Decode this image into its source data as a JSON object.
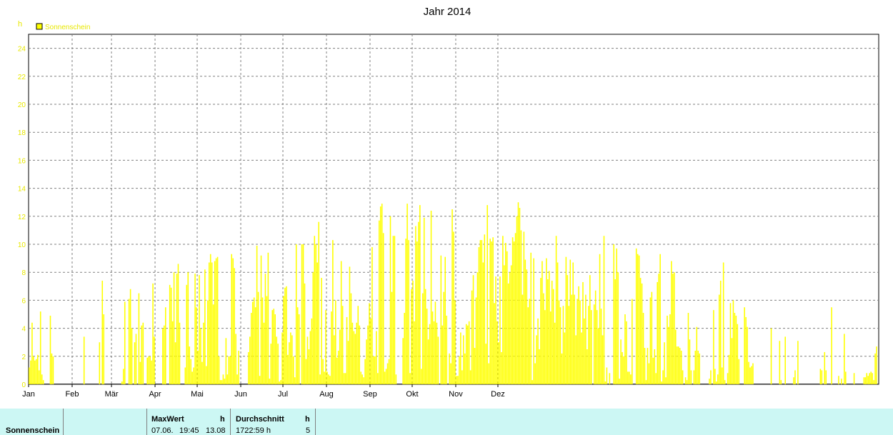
{
  "chart_data": {
    "type": "bar",
    "title": "Jahr 2014",
    "ylabel": "h",
    "ylim": [
      0,
      25
    ],
    "yticks": [
      "0",
      "2",
      "4",
      "6",
      "8",
      "10",
      "12",
      "14",
      "16",
      "18",
      "20",
      "22",
      "24"
    ],
    "months": [
      "Jan",
      "Feb",
      "Mär",
      "Apr",
      "Mai",
      "Jun",
      "Jul",
      "Aug",
      "Sep",
      "Okt",
      "Nov",
      "Dez"
    ],
    "grid": true,
    "legend_position": "top-left",
    "series": [
      {
        "name": "Sonnenschein",
        "color": "#ffff00",
        "x_unit": "day of year",
        "values": [
          1.2,
          1.7,
          4.4,
          2.0,
          1.7,
          1.8,
          2.1,
          1.0,
          5.2,
          0.7,
          0.3,
          0,
          0,
          0,
          0,
          4.9,
          2.2,
          2.0,
          0,
          0,
          0,
          0,
          0,
          0,
          0,
          0,
          0,
          0,
          0,
          0,
          0,
          0,
          0,
          0,
          0,
          0,
          0,
          0,
          0,
          3.4,
          0,
          0,
          0,
          0,
          0,
          0,
          0,
          0,
          0,
          0,
          3.0,
          0,
          7.4,
          5.0,
          0,
          0,
          0,
          0,
          0,
          0,
          0,
          0,
          0,
          0,
          0,
          0,
          0.2,
          1.1,
          5.9,
          0,
          0,
          6.1,
          6.8,
          4.0,
          0,
          3.0,
          3.6,
          0,
          6.5,
          1.6,
          4.2,
          4.4,
          0,
          0,
          1.9,
          2.0,
          2.0,
          1.7,
          7.2,
          3.4,
          0,
          0,
          0,
          0,
          0,
          4.0,
          4.2,
          5.5,
          0,
          0,
          7.1,
          6.9,
          4.5,
          8.0,
          3.0,
          7.9,
          8.6,
          4.4,
          0,
          0,
          0,
          1.2,
          7.1,
          8.0,
          2.7,
          1.8,
          0.9,
          1.2,
          7.9,
          5.5,
          2.4,
          7.8,
          4.0,
          1.6,
          4.4,
          8.2,
          1.3,
          6.0,
          8.7,
          9.3,
          8.7,
          5.7,
          8.8,
          9.0,
          9.1,
          2.0,
          0.3,
          0.3,
          0.7,
          0.4,
          3.3,
          0.7,
          2.0,
          2.0,
          9.3,
          9.0,
          8.3,
          3.6,
          0.7,
          2.4,
          0,
          0,
          0,
          0,
          0,
          0,
          2.3,
          3.4,
          5.1,
          5.9,
          6.2,
          5.5,
          9.9,
          6.6,
          0.6,
          9.2,
          6.2,
          4.4,
          7.9,
          6.3,
          9.4,
          0.4,
          2.9,
          5.3,
          5.4,
          5.0,
          3.4,
          2.9,
          0.2,
          0.3,
          3.7,
          6.3,
          6.9,
          7.0,
          2.1,
          3.0,
          3.7,
          3.5,
          2.0,
          0.5,
          10.0,
          5.5,
          5.0,
          0,
          10.0,
          10.0,
          7.2,
          1.8,
          3.4,
          2.5,
          3.8,
          4.7,
          8.0,
          10.6,
          10.0,
          8.7,
          11.6,
          0.7,
          7.6,
          1.8,
          0.9,
          5.3,
          0.9,
          0.7,
          0.6,
          5.2,
          10.3,
          3.5,
          6.0,
          1.9,
          2.4,
          3.9,
          8.8,
          5.6,
          0.8,
          0.8,
          4.8,
          3.1,
          8.4,
          6.5,
          4.4,
          3.8,
          3.6,
          4.4,
          5.6,
          4.2,
          0.9,
          0.7,
          0.5,
          1.8,
          3.2,
          4.2,
          5.8,
          4.7,
          9.8,
          2.0,
          2.0,
          3.8,
          0.8,
          11.7,
          12.7,
          12.9,
          10.8,
          0.9,
          1.1,
          1.5,
          1.8,
          12.0,
          6.6,
          10.6,
          10.6,
          0.7,
          0,
          0,
          0,
          0,
          3.3,
          5.1,
          10.4,
          12.9,
          10.3,
          0.8,
          6.8,
          7.4,
          4.5,
          11.3,
          10.2,
          11.6,
          12.8,
          1.1,
          6.5,
          11.9,
          6.8,
          5.4,
          3.2,
          4.3,
          12.4,
          5.2,
          4.5,
          5.9,
          4.4,
          3.4,
          0,
          9.2,
          4.2,
          6.6,
          9.1,
          4.9,
          0,
          2.2,
          1.5,
          12.5,
          10.9,
          6.0,
          0.6,
          0.6,
          2.0,
          3.7,
          1.0,
          3.5,
          2.2,
          4.3,
          4.2,
          4.5,
          1.0,
          6.7,
          7.8,
          2.6,
          6.2,
          8.0,
          9.8,
          10.3,
          10.3,
          8.7,
          10.7,
          2.9,
          12.8,
          1.5,
          10.4,
          10.2,
          10.5,
          5.8,
          7.7,
          4.5,
          3.0,
          7.7,
          2.3,
          10.6,
          8.5,
          10.1,
          9.5,
          7.2,
          8.0,
          8.5,
          10.5,
          10.2,
          10.8,
          12.0,
          13.0,
          12.6,
          11.0,
          6.4,
          10.9,
          8.9,
          8.2,
          5.5,
          6.1,
          9.4,
          0.3,
          9.0,
          1.5,
          3.5,
          4.7,
          2.5,
          7.6,
          8.8,
          6.5,
          5.3,
          9.0,
          7.5,
          8.1,
          5.2,
          7.4,
          6.8,
          4.4,
          10.6,
          8.7,
          6.0,
          5.5,
          2.2,
          5.6,
          3.7,
          9.1,
          7.8,
          5.6,
          8.9,
          6.4,
          8.7,
          6.4,
          3.5,
          6.1,
          7.0,
          6.0,
          3.7,
          7.3,
          4.7,
          6.4,
          2.5,
          5.6,
          7.8,
          5.3,
          0,
          5.7,
          6.7,
          5.3,
          4.0,
          9.3,
          5.4,
          3.5,
          10.6,
          0.2,
          1.2,
          0,
          0.8,
          0,
          0,
          10.0,
          7.5,
          9.7,
          8.0,
          0.4,
          3.2,
          2.3,
          2.0,
          5.0,
          4.5,
          0.9,
          0.9,
          0.7,
          6.1,
          0,
          0,
          9.7,
          9.3,
          9.2,
          7.6,
          7.2,
          5.1,
          2.6,
          0.3,
          2.6,
          1.5,
          6.2,
          6.6,
          1.9,
          2.5,
          0.8,
          7.3,
          7.9,
          9.3,
          0.2,
          1.0,
          3.0,
          0.5,
          4.9,
          4.1,
          5.0,
          8.8,
          7.9,
          8.0,
          3.9,
          2.7,
          2.7,
          2.6,
          2.4,
          1.0,
          0,
          0.5,
          0.3,
          5.1,
          3.2,
          1.0,
          0,
          1.0,
          2.4,
          4.1,
          2.4,
          2.2,
          0,
          0,
          0,
          0,
          0,
          0,
          0.4,
          1.0,
          0,
          5.3,
          1.1,
          0.2,
          0.7,
          6.4,
          7.4,
          1.2,
          8.7,
          0.3,
          0,
          0.8,
          2.1,
          5.8,
          3.3,
          6.0,
          5.1,
          4.9,
          4.3,
          1.8,
          0,
          0,
          0,
          5.5,
          4.8,
          4.1,
          1.6,
          1.2,
          1.3,
          1.5,
          0,
          0,
          0,
          0,
          0,
          0,
          0,
          0,
          0,
          0,
          0,
          0,
          4.0,
          0,
          0,
          0,
          0,
          0,
          3.1,
          0.3,
          0,
          0,
          3.4,
          0,
          0,
          0,
          0,
          0,
          0.5,
          1.0,
          0,
          3.1,
          0,
          0,
          0,
          0,
          0,
          0,
          0,
          0,
          0,
          0,
          0,
          0,
          0,
          0,
          0,
          1.1,
          1.0,
          0,
          2.3,
          1.0,
          0,
          0,
          0,
          5.5,
          0,
          0,
          0,
          0,
          0.6,
          0,
          0.4,
          0,
          3.6,
          0.9,
          0,
          0,
          0,
          0,
          0,
          0.8,
          0,
          0,
          0,
          0,
          0,
          0,
          0.5,
          0.5,
          0.8,
          0.6,
          0.8,
          0.9,
          0.8,
          0.3,
          2.2,
          2.7,
          0
        ]
      }
    ]
  },
  "stats": {
    "row_label": "Sonnenschein",
    "max_header": "MaxWert",
    "max_unit": "h",
    "max_date": "07.06.",
    "max_time": "19:45",
    "max_value": "13.08",
    "avg_header": "Durchschnitt",
    "avg_unit": "h",
    "avg_total": "1722:59 h",
    "avg_value": "5"
  }
}
